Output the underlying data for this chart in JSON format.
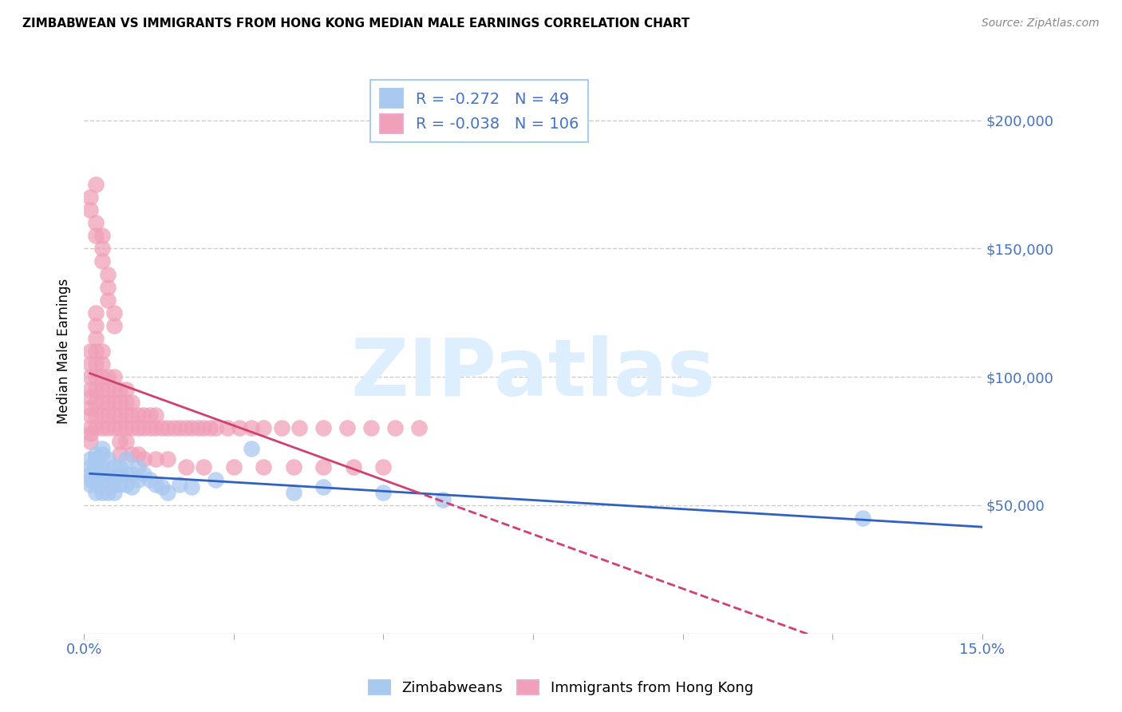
{
  "title": "ZIMBABWEAN VS IMMIGRANTS FROM HONG KONG MEDIAN MALE EARNINGS CORRELATION CHART",
  "source": "Source: ZipAtlas.com",
  "ylabel": "Median Male Earnings",
  "xlim": [
    0.0,
    0.15
  ],
  "ylim": [
    0,
    220000
  ],
  "background_color": "#ffffff",
  "grid_color": "#cccccc",
  "legend_R1": "-0.272",
  "legend_N1": "49",
  "legend_R2": "-0.038",
  "legend_N2": "106",
  "color_blue": "#a8c8f0",
  "color_pink": "#f0a0b8",
  "line_blue": "#3060c0",
  "line_pink": "#d04070",
  "watermark_text": "ZIPatlas",
  "watermark_color": "#ddeeff",
  "legend_label1": "Zimbabweans",
  "legend_label2": "Immigrants from Hong Kong",
  "axis_color": "#4472C4",
  "title_fontsize": 11,
  "blue_x": [
    0.001,
    0.001,
    0.001,
    0.001,
    0.001,
    0.002,
    0.002,
    0.002,
    0.002,
    0.002,
    0.002,
    0.003,
    0.003,
    0.003,
    0.003,
    0.003,
    0.003,
    0.004,
    0.004,
    0.004,
    0.004,
    0.005,
    0.005,
    0.005,
    0.005,
    0.006,
    0.006,
    0.006,
    0.007,
    0.007,
    0.007,
    0.008,
    0.008,
    0.009,
    0.009,
    0.01,
    0.011,
    0.012,
    0.013,
    0.014,
    0.016,
    0.018,
    0.022,
    0.028,
    0.035,
    0.04,
    0.05,
    0.06,
    0.13
  ],
  "blue_y": [
    65000,
    62000,
    68000,
    60000,
    58000,
    70000,
    65000,
    62000,
    68000,
    60000,
    55000,
    70000,
    65000,
    62000,
    58000,
    55000,
    72000,
    68000,
    62000,
    58000,
    55000,
    65000,
    60000,
    58000,
    55000,
    65000,
    62000,
    58000,
    68000,
    62000,
    58000,
    62000,
    57000,
    65000,
    60000,
    62000,
    60000,
    58000,
    57000,
    55000,
    58000,
    57000,
    60000,
    72000,
    55000,
    57000,
    55000,
    52000,
    45000
  ],
  "pink_x": [
    0.001,
    0.001,
    0.001,
    0.001,
    0.001,
    0.001,
    0.001,
    0.001,
    0.001,
    0.001,
    0.002,
    0.002,
    0.002,
    0.002,
    0.002,
    0.002,
    0.002,
    0.002,
    0.002,
    0.002,
    0.003,
    0.003,
    0.003,
    0.003,
    0.003,
    0.003,
    0.003,
    0.004,
    0.004,
    0.004,
    0.004,
    0.004,
    0.005,
    0.005,
    0.005,
    0.005,
    0.005,
    0.006,
    0.006,
    0.006,
    0.006,
    0.007,
    0.007,
    0.007,
    0.007,
    0.008,
    0.008,
    0.008,
    0.009,
    0.009,
    0.01,
    0.01,
    0.011,
    0.011,
    0.012,
    0.012,
    0.013,
    0.014,
    0.015,
    0.016,
    0.017,
    0.018,
    0.019,
    0.02,
    0.021,
    0.022,
    0.024,
    0.026,
    0.028,
    0.03,
    0.033,
    0.036,
    0.04,
    0.044,
    0.048,
    0.052,
    0.056,
    0.001,
    0.001,
    0.002,
    0.002,
    0.002,
    0.003,
    0.003,
    0.003,
    0.004,
    0.004,
    0.004,
    0.005,
    0.005,
    0.006,
    0.006,
    0.007,
    0.008,
    0.009,
    0.01,
    0.012,
    0.014,
    0.017,
    0.02,
    0.025,
    0.03,
    0.035,
    0.04,
    0.045,
    0.05
  ],
  "pink_y": [
    80000,
    75000,
    85000,
    78000,
    92000,
    88000,
    95000,
    100000,
    105000,
    110000,
    80000,
    85000,
    90000,
    95000,
    100000,
    105000,
    110000,
    115000,
    120000,
    125000,
    80000,
    85000,
    90000,
    95000,
    100000,
    105000,
    110000,
    80000,
    85000,
    90000,
    95000,
    100000,
    80000,
    85000,
    90000,
    95000,
    100000,
    80000,
    85000,
    90000,
    95000,
    80000,
    85000,
    90000,
    95000,
    80000,
    85000,
    90000,
    80000,
    85000,
    80000,
    85000,
    80000,
    85000,
    80000,
    85000,
    80000,
    80000,
    80000,
    80000,
    80000,
    80000,
    80000,
    80000,
    80000,
    80000,
    80000,
    80000,
    80000,
    80000,
    80000,
    80000,
    80000,
    80000,
    80000,
    80000,
    80000,
    165000,
    170000,
    160000,
    175000,
    155000,
    155000,
    150000,
    145000,
    140000,
    135000,
    130000,
    125000,
    120000,
    75000,
    70000,
    75000,
    70000,
    70000,
    68000,
    68000,
    68000,
    65000,
    65000,
    65000,
    65000,
    65000,
    65000,
    65000,
    65000
  ]
}
